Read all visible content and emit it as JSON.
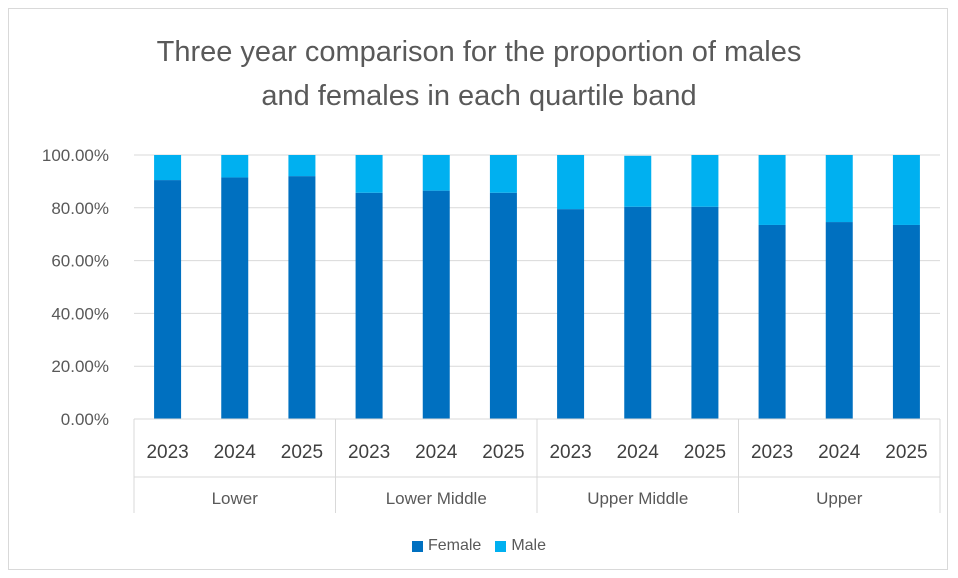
{
  "chart_data": {
    "type": "bar",
    "stacked": true,
    "title_lines": [
      "Three year comparison for the proportion of males",
      "and females in each quartile band"
    ],
    "xlabel": "",
    "ylabel": "",
    "ylim": [
      0,
      100
    ],
    "y_ticks": [
      "0.00%",
      "20.00%",
      "40.00%",
      "60.00%",
      "80.00%",
      "100.00%"
    ],
    "y_tick_values": [
      0,
      20,
      40,
      60,
      80,
      100
    ],
    "groups": [
      {
        "name": "Lower",
        "categories": [
          "2023",
          "2024",
          "2025"
        ]
      },
      {
        "name": "Lower Middle",
        "categories": [
          "2023",
          "2024",
          "2025"
        ]
      },
      {
        "name": "Upper Middle",
        "categories": [
          "2023",
          "2024",
          "2025"
        ]
      },
      {
        "name": "Upper",
        "categories": [
          "2023",
          "2024",
          "2025"
        ]
      }
    ],
    "series": [
      {
        "name": "Female",
        "color": "#0070c0",
        "values": [
          90.5,
          91.5,
          92.0,
          85.7,
          86.5,
          85.7,
          79.5,
          80.4,
          80.4,
          73.5,
          74.6,
          73.5
        ]
      },
      {
        "name": "Male",
        "color": "#00b0f0",
        "values": [
          9.5,
          8.5,
          8.0,
          14.3,
          13.5,
          14.3,
          20.5,
          19.3,
          19.6,
          26.5,
          25.4,
          26.5
        ]
      }
    ],
    "grid": true,
    "legend_position": "bottom"
  }
}
